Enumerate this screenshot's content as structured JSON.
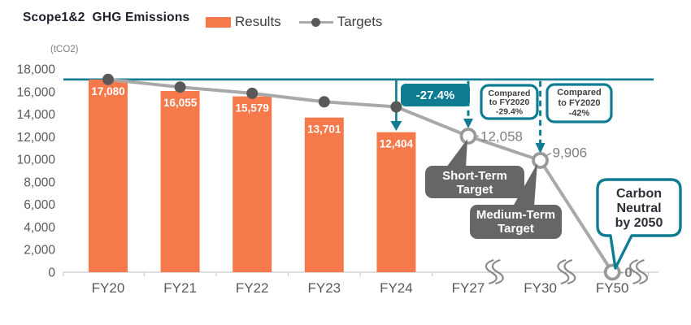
{
  "header": {
    "title": "Scope1&2  GHG Emissions",
    "legend": {
      "results": "Results",
      "targets": "Targets"
    }
  },
  "chart": {
    "unit": "(tCO2)"
  },
  "colors": {
    "bar_orange": "#F5794B",
    "teal": "#0E7C91",
    "line_gray": "#A9A9A9",
    "dot_dark": "#595959",
    "hollow_stroke": "#999999",
    "callout_gray": "#666666",
    "axis_text": "#595959",
    "axis_line": "#C9C9C9",
    "point_label_gray": "#7f7f7f",
    "box_text_dark": "#3f3f3f",
    "bubble_text": "#2e2e38"
  },
  "chart_data": {
    "type": "bar+line",
    "title": "Scope1&2 GHG Emissions",
    "unit": "tCO2",
    "categories": [
      "FY20",
      "FY21",
      "FY22",
      "FY23",
      "FY24",
      "FY27",
      "FY30",
      "FY50"
    ],
    "series": [
      {
        "name": "Results",
        "type": "bar",
        "values": [
          17080,
          16055,
          15579,
          13701,
          12404,
          null,
          null,
          null
        ],
        "labels": [
          "17,080",
          "16,055",
          "15,579",
          "13,701",
          "12,404"
        ]
      },
      {
        "name": "Targets",
        "type": "line",
        "values": [
          17080,
          16400,
          15850,
          15100,
          14650,
          12058,
          9906,
          0
        ],
        "values_estimated": [
          false,
          true,
          true,
          true,
          true,
          false,
          false,
          false
        ],
        "point_labels": [
          null,
          null,
          null,
          null,
          null,
          "12,058",
          "9,906",
          "0"
        ],
        "marker_style": [
          "filled",
          "filled",
          "filled",
          "filled",
          "filled",
          "hollow",
          "hollow",
          "hollow"
        ]
      }
    ],
    "ylim": [
      0,
      18000
    ],
    "yticks": [
      "0",
      "2,000",
      "4,000",
      "6,000",
      "8,000",
      "10,000",
      "12,000",
      "14,000",
      "16,000",
      "18,000"
    ],
    "reference_line_value": 17080,
    "axis_breaks_between": [
      [
        "FY24",
        "FY27"
      ],
      [
        "FY27",
        "FY30"
      ],
      [
        "FY30",
        "FY50"
      ]
    ],
    "legend_position": "top",
    "grid": "off"
  },
  "annotations": {
    "drop_pct": {
      "text": "-27.4%",
      "at": "FY24"
    },
    "compared_boxes": [
      {
        "at": "FY27",
        "lines": [
          "Compared",
          "to FY2020",
          "-29.4%"
        ]
      },
      {
        "at": "FY30",
        "lines": [
          "Compared",
          "to FY2020",
          "-42%"
        ]
      }
    ],
    "callouts": [
      {
        "at": "FY27",
        "lines": [
          "Short-Term",
          "Target"
        ]
      },
      {
        "at": "FY30",
        "lines": [
          "Medium-Term",
          "Target"
        ]
      }
    ],
    "carbon_neutral": {
      "at": "FY50",
      "lines": [
        "Carbon",
        "Neutral",
        "by 2050"
      ]
    }
  }
}
